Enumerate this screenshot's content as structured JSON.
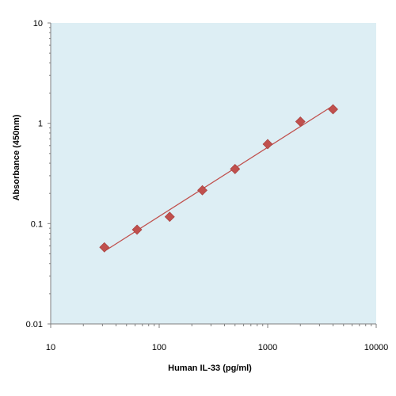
{
  "chart_data": {
    "type": "scatter",
    "title": "",
    "xlabel": "Human IL-33 (pg/ml)",
    "ylabel": "Absorbance (450nm)",
    "x_scale": "log",
    "y_scale": "log",
    "xlim": [
      10,
      10000
    ],
    "ylim": [
      0.01,
      10
    ],
    "x_ticks": [
      "10",
      "100",
      "1000",
      "10000"
    ],
    "y_ticks": [
      "0.01",
      "0.1",
      "1",
      "10"
    ],
    "grid": false,
    "legend": "none",
    "colors": {
      "plot_background": "#ddeef4",
      "marker": "#c0504d",
      "fit_line": "#c0504d"
    },
    "series": [
      {
        "values": [
          {
            "x": 31.25,
            "y": 0.058
          },
          {
            "x": 62.5,
            "y": 0.087
          },
          {
            "x": 125,
            "y": 0.117
          },
          {
            "x": 250,
            "y": 0.215
          },
          {
            "x": 500,
            "y": 0.35
          },
          {
            "x": 1000,
            "y": 0.62
          },
          {
            "x": 2000,
            "y": 1.04
          },
          {
            "x": 4000,
            "y": 1.38
          }
        ]
      }
    ]
  }
}
